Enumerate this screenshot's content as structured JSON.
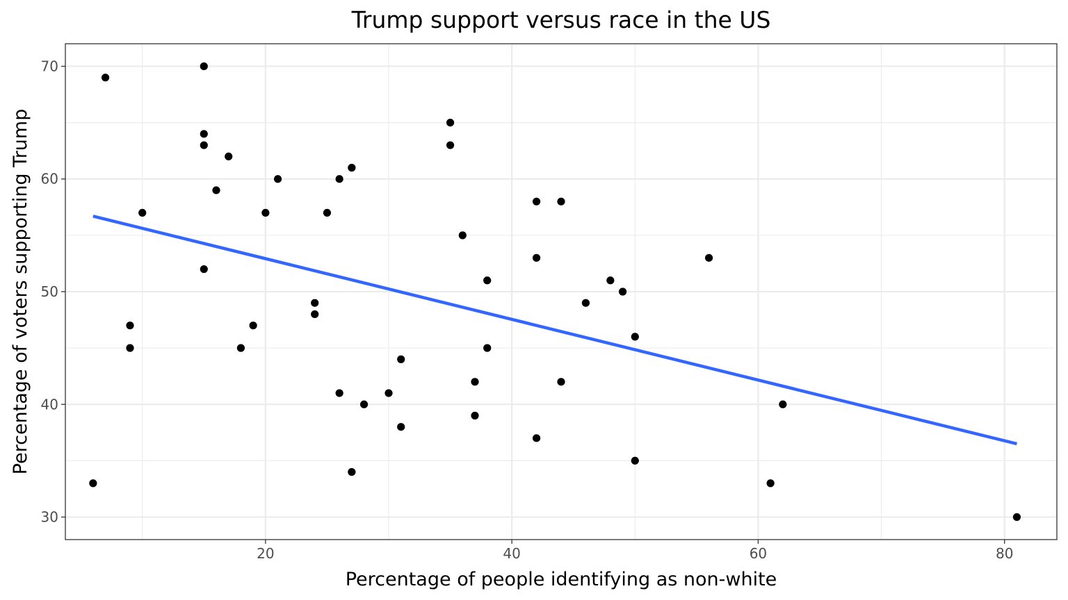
{
  "chart_data": {
    "type": "scatter",
    "title": "Trump support versus race in the US",
    "xlabel": "Percentage of people identifying as non-white",
    "ylabel": "Percentage of voters supporting Trump",
    "xlim": [
      3.75,
      84.25
    ],
    "ylim": [
      28,
      72
    ],
    "x_ticks": [
      20,
      40,
      60,
      80
    ],
    "y_ticks": [
      30,
      40,
      50,
      60,
      70
    ],
    "x_minor_ticks": [
      10,
      30,
      50,
      70
    ],
    "y_minor_ticks": [
      35,
      45,
      55,
      65
    ],
    "grid": true,
    "legend": "none",
    "point_color": "#000000",
    "trend_color": "#3366ff",
    "points": [
      {
        "x": 7,
        "y": 69
      },
      {
        "x": 15,
        "y": 70
      },
      {
        "x": 15,
        "y": 64
      },
      {
        "x": 15,
        "y": 63
      },
      {
        "x": 17,
        "y": 62
      },
      {
        "x": 16,
        "y": 59
      },
      {
        "x": 21,
        "y": 60
      },
      {
        "x": 10,
        "y": 57
      },
      {
        "x": 20,
        "y": 57
      },
      {
        "x": 15,
        "y": 52
      },
      {
        "x": 9,
        "y": 47
      },
      {
        "x": 9,
        "y": 45
      },
      {
        "x": 19,
        "y": 47
      },
      {
        "x": 18,
        "y": 45
      },
      {
        "x": 6,
        "y": 33
      },
      {
        "x": 24,
        "y": 49
      },
      {
        "x": 24,
        "y": 48
      },
      {
        "x": 25,
        "y": 57
      },
      {
        "x": 26,
        "y": 60
      },
      {
        "x": 27,
        "y": 61
      },
      {
        "x": 35,
        "y": 65
      },
      {
        "x": 35,
        "y": 63
      },
      {
        "x": 36,
        "y": 55
      },
      {
        "x": 38,
        "y": 51
      },
      {
        "x": 38,
        "y": 45
      },
      {
        "x": 31,
        "y": 44
      },
      {
        "x": 26,
        "y": 41
      },
      {
        "x": 28,
        "y": 40
      },
      {
        "x": 30,
        "y": 41
      },
      {
        "x": 31,
        "y": 38
      },
      {
        "x": 27,
        "y": 34
      },
      {
        "x": 37,
        "y": 42
      },
      {
        "x": 37,
        "y": 39
      },
      {
        "x": 42,
        "y": 58
      },
      {
        "x": 44,
        "y": 58
      },
      {
        "x": 42,
        "y": 53
      },
      {
        "x": 42,
        "y": 37
      },
      {
        "x": 44,
        "y": 42
      },
      {
        "x": 46,
        "y": 49
      },
      {
        "x": 48,
        "y": 51
      },
      {
        "x": 49,
        "y": 50
      },
      {
        "x": 50,
        "y": 46
      },
      {
        "x": 50,
        "y": 35
      },
      {
        "x": 56,
        "y": 53
      },
      {
        "x": 61,
        "y": 33
      },
      {
        "x": 62,
        "y": 40
      },
      {
        "x": 81,
        "y": 30
      }
    ],
    "trend_line": {
      "x": [
        6,
        81
      ],
      "y": [
        56.7,
        36.5
      ]
    }
  }
}
